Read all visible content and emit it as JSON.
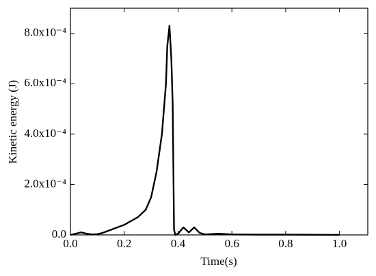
{
  "chart_data": {
    "type": "line",
    "xlabel": "Time(s)",
    "ylabel": "Kinetic energy (J)",
    "x": [
      0.0,
      0.02,
      0.04,
      0.06,
      0.08,
      0.1,
      0.12,
      0.15,
      0.2,
      0.25,
      0.28,
      0.3,
      0.32,
      0.34,
      0.355,
      0.36,
      0.368,
      0.375,
      0.38,
      0.385,
      0.39,
      0.4,
      0.42,
      0.44,
      0.46,
      0.48,
      0.5,
      0.55,
      0.6,
      0.7,
      0.8,
      1.0
    ],
    "series": [
      {
        "name": "Kinetic energy",
        "color": "#000000",
        "values": [
          0,
          5e-06,
          1e-05,
          5e-06,
          2e-06,
          3e-06,
          8e-06,
          2e-05,
          4e-05,
          7e-05,
          0.0001,
          0.00015,
          0.00025,
          0.0004,
          0.0006,
          0.00075,
          0.00083,
          0.0007,
          0.00052,
          2e-05,
          0,
          5e-06,
          3e-05,
          1e-05,
          3e-05,
          8e-06,
          2e-06,
          5e-06,
          2e-06,
          1e-06,
          1e-06,
          0
        ]
      }
    ],
    "xlim": [
      0,
      1.105
    ],
    "xticks": [
      {
        "value": 0,
        "label": "0.0"
      },
      0.2,
      0.4,
      0.6,
      0.8,
      {
        "value": 1,
        "label": "1.0"
      }
    ],
    "ylim": [
      0,
      0.0009
    ],
    "yticks": [
      {
        "value": 0,
        "label": "0.0"
      },
      {
        "value": 0.0002,
        "label": "2.0x10⁻⁴"
      },
      {
        "value": 0.0004,
        "label": "4.0x10⁻⁴"
      },
      {
        "value": 0.0006,
        "label": "6.0x10⁻⁴"
      },
      {
        "value": 0.0008,
        "label": "8.0x10⁻⁴"
      }
    ]
  }
}
